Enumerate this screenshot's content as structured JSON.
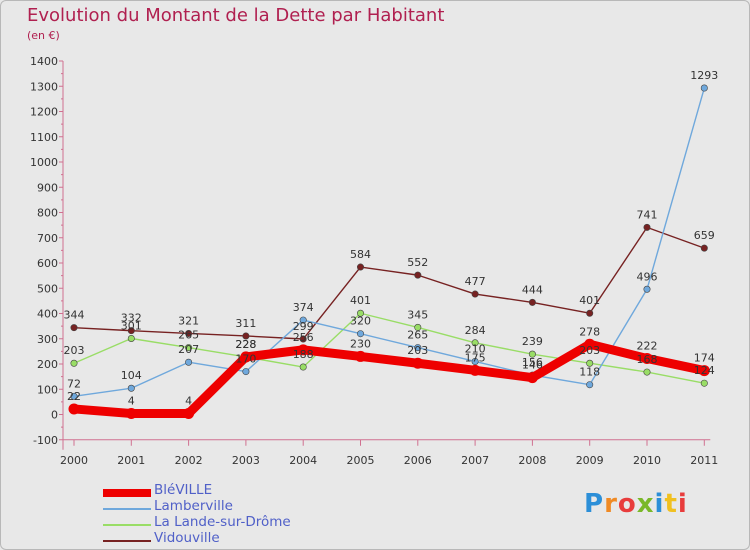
{
  "chart_data": {
    "type": "line",
    "title": "Evolution du Montant de la Dette par Habitant",
    "subtitle": "(en €)",
    "categories": [
      "2000",
      "2001",
      "2002",
      "2003",
      "2004",
      "2005",
      "2006",
      "2007",
      "2008",
      "2009",
      "2010",
      "2011"
    ],
    "ylim": [
      -100,
      1400
    ],
    "yticks": [
      -100,
      0,
      100,
      200,
      300,
      400,
      500,
      600,
      700,
      800,
      900,
      1000,
      1100,
      1200,
      1300,
      1400
    ],
    "grid": false,
    "legend_position": "bottom-left",
    "series": [
      {
        "name": "BléVILLE",
        "color": "#ee0000",
        "values": [
          22,
          4,
          4,
          228,
          256,
          230,
          203,
          175,
          146,
          278,
          222,
          174
        ]
      },
      {
        "name": "Lamberville",
        "color": "#6fa8dc",
        "values": [
          72,
          104,
          207,
          170,
          374,
          320,
          265,
          210,
          156,
          118,
          496,
          1293
        ]
      },
      {
        "name": "La Lande-sur-Drôme",
        "color": "#99dd66",
        "values": [
          203,
          301,
          265,
          228,
          188,
          401,
          345,
          284,
          239,
          203,
          168,
          124
        ]
      },
      {
        "name": "Vidouville",
        "color": "#772222",
        "values": [
          344,
          332,
          321,
          311,
          299,
          584,
          552,
          477,
          444,
          401,
          741,
          659
        ]
      }
    ]
  },
  "logo": {
    "letters": [
      "P",
      "r",
      "o",
      "x",
      "i",
      "t",
      "i"
    ],
    "colors": [
      "#2c8fd8",
      "#f08a24",
      "#e83c3c",
      "#7ab829",
      "#2c8fd8",
      "#f0c020",
      "#e83c3c"
    ]
  }
}
